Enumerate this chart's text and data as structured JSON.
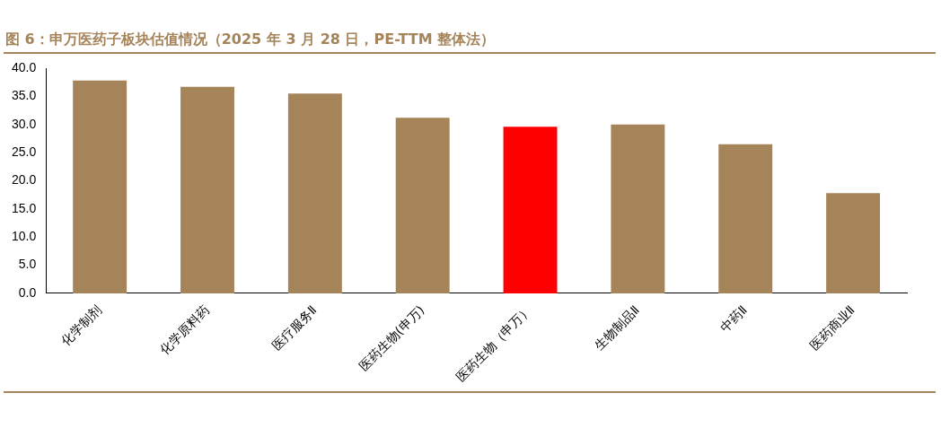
{
  "chart_data": {
    "type": "bar",
    "title": "图 6：申万医药子板块估值情况（2025 年 3 月 28 日，PE-TTM 整体法）",
    "categories": [
      "化学制剂",
      "化学原料药",
      "医疗服务Ⅱ",
      "医药生物(申万)",
      "医药生物（申万）",
      "生物制品Ⅱ",
      "中药Ⅱ",
      "医药商业Ⅱ"
    ],
    "values": [
      37.8,
      36.7,
      35.5,
      31.2,
      29.6,
      30.0,
      26.5,
      17.8
    ],
    "colors": [
      "#a6845a",
      "#a6845a",
      "#a6845a",
      "#a6845a",
      "#ff0000",
      "#a6845a",
      "#a6845a",
      "#a6845a"
    ],
    "ylim": [
      0,
      40
    ],
    "yticks": [
      {
        "value": 0,
        "label": "0.0"
      },
      {
        "value": 5,
        "label": "5.0"
      },
      {
        "value": 10,
        "label": "10.0"
      },
      {
        "value": 15,
        "label": "15.0"
      },
      {
        "value": 20,
        "label": "20.0"
      },
      {
        "value": 25,
        "label": "25.0"
      },
      {
        "value": 30,
        "label": "30.0"
      },
      {
        "value": 35,
        "label": "35.0"
      },
      {
        "value": 40,
        "label": "40.0"
      }
    ],
    "grid": false,
    "legend": false
  }
}
